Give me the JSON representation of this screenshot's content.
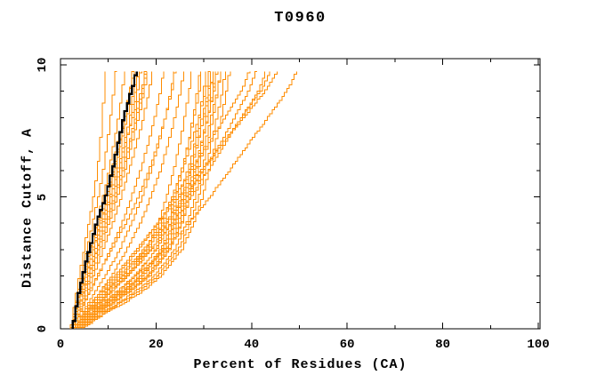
{
  "chart_data": {
    "type": "line",
    "title": "T0960",
    "xlabel": "Percent of Residues (CA)",
    "ylabel": "Distance Cutoff, A",
    "xlim": [
      0,
      100.4
    ],
    "ylim": [
      0,
      10.24
    ],
    "x_ticks_major": [
      0,
      20,
      40,
      60,
      80,
      100
    ],
    "x_ticks_minor": [
      10,
      30,
      50,
      70,
      90
    ],
    "y_ticks_major": [
      0,
      5,
      10
    ],
    "y_ticks_minor": [
      1,
      2,
      3,
      4,
      6,
      7,
      8,
      9
    ],
    "grid": false,
    "legend": "none",
    "frame": "box-with-inward-ticks",
    "line_color": "#ff8c00",
    "highlight_color": "#000000",
    "frame_color": "#000000",
    "text_color": "#000000",
    "cutoffs": [
      0,
      0.5,
      1,
      1.5,
      2,
      3,
      4,
      5,
      6,
      7,
      8,
      9,
      9.75
    ],
    "highlighted_model": [
      2.6,
      3.0,
      3.5,
      4.1,
      4.7,
      6.1,
      7.6,
      9.5,
      10.9,
      12.1,
      13.3,
      14.9,
      16.0
    ],
    "models": [
      [
        2.2,
        2.6,
        3.0,
        3.5,
        4.0,
        5.0,
        6.0,
        7.0,
        7.8,
        8.4,
        8.8,
        9.2,
        9.5
      ],
      [
        2.4,
        2.8,
        3.3,
        3.9,
        4.5,
        5.6,
        6.8,
        8.0,
        9.0,
        9.8,
        10.5,
        11.2,
        11.6
      ],
      [
        2.6,
        3.1,
        3.6,
        4.3,
        5.0,
        6.3,
        7.7,
        9.0,
        10.2,
        11.2,
        12.2,
        13.0,
        13.4
      ],
      [
        2.8,
        3.3,
        3.9,
        4.7,
        5.5,
        7.0,
        8.5,
        10.0,
        11.3,
        12.5,
        13.6,
        14.6,
        15.0
      ],
      [
        3.0,
        3.6,
        4.3,
        5.2,
        6.0,
        7.7,
        9.3,
        11.0,
        12.5,
        13.8,
        15.0,
        16.2,
        16.8
      ],
      [
        2.5,
        3.0,
        3.6,
        4.4,
        5.2,
        6.8,
        8.4,
        10.0,
        11.5,
        12.8,
        14.0,
        15.5,
        16.2
      ],
      [
        3.2,
        3.9,
        4.6,
        5.6,
        6.6,
        8.4,
        10.2,
        12.0,
        13.6,
        15.0,
        16.4,
        17.6,
        18.2
      ],
      [
        2.3,
        2.8,
        3.4,
        4.1,
        4.8,
        6.2,
        7.8,
        9.4,
        10.8,
        12.0,
        13.4,
        14.6,
        15.2
      ],
      [
        2.7,
        3.3,
        4.0,
        4.9,
        5.8,
        7.4,
        9.0,
        10.6,
        12.2,
        13.6,
        15.2,
        17.0,
        17.8
      ],
      [
        3.4,
        4.2,
        5.0,
        6.0,
        7.0,
        9.0,
        11.0,
        12.8,
        14.4,
        16.0,
        17.4,
        18.6,
        19.2
      ],
      [
        2.9,
        3.5,
        4.2,
        5.1,
        6.0,
        7.8,
        9.6,
        11.4,
        13.0,
        14.4,
        15.8,
        17.2,
        17.9
      ],
      [
        2.4,
        2.9,
        3.5,
        4.3,
        5.1,
        6.6,
        8.2,
        9.8,
        11.2,
        12.4,
        13.6,
        14.8,
        15.4
      ],
      [
        3.1,
        3.8,
        4.5,
        5.4,
        6.3,
        8.0,
        9.8,
        11.6,
        13.2,
        14.6,
        16.0,
        17.4,
        18.0
      ],
      [
        2.6,
        3.2,
        3.8,
        4.6,
        5.4,
        7.0,
        8.8,
        10.4,
        12.0,
        13.4,
        14.6,
        15.8,
        16.4
      ],
      [
        3.0,
        4.0,
        5.2,
        6.6,
        8.0,
        10.5,
        13.0,
        15.0,
        16.8,
        18.4,
        19.8,
        21.0,
        21.6
      ],
      [
        3.3,
        4.5,
        6.0,
        7.8,
        9.5,
        12.5,
        15.0,
        17.2,
        19.0,
        20.6,
        22.0,
        23.2,
        23.8
      ],
      [
        3.6,
        5.0,
        6.8,
        8.8,
        10.8,
        14.0,
        16.8,
        19.0,
        21.0,
        22.6,
        24.0,
        25.2,
        25.8
      ],
      [
        2.8,
        3.8,
        5.0,
        6.4,
        7.8,
        10.8,
        13.8,
        16.4,
        18.6,
        20.4,
        22.0,
        23.4,
        24.0
      ],
      [
        3.2,
        5.5,
        8.5,
        11.5,
        14.0,
        18.0,
        20.5,
        22.3,
        23.8,
        25.0,
        26.0,
        27.0,
        27.5
      ],
      [
        3.5,
        6.0,
        9.5,
        13.0,
        16.0,
        20.0,
        22.5,
        24.2,
        25.6,
        26.8,
        27.8,
        28.7,
        29.2
      ],
      [
        3.8,
        6.8,
        10.5,
        14.5,
        17.5,
        21.5,
        24.0,
        25.7,
        27.0,
        28.1,
        29.1,
        30.0,
        30.5
      ],
      [
        3.0,
        5.0,
        8.0,
        11.0,
        13.8,
        18.5,
        21.5,
        23.7,
        25.4,
        26.8,
        28.0,
        29.1,
        29.6
      ],
      [
        4.0,
        7.5,
        11.5,
        15.5,
        18.8,
        23.0,
        25.5,
        27.2,
        28.5,
        29.6,
        30.6,
        31.5,
        32.0
      ],
      [
        3.4,
        6.2,
        9.8,
        13.6,
        16.8,
        21.0,
        23.8,
        25.8,
        27.4,
        28.8,
        30.0,
        31.1,
        31.6
      ],
      [
        3.7,
        7.0,
        11.0,
        15.0,
        18.2,
        22.4,
        25.0,
        26.9,
        28.4,
        29.7,
        30.9,
        32.0,
        32.5
      ],
      [
        3.1,
        5.2,
        8.2,
        11.4,
        14.4,
        19.2,
        22.4,
        24.8,
        26.7,
        28.3,
        29.7,
        31.0,
        31.6
      ],
      [
        4.2,
        8.0,
        12.5,
        16.5,
        19.8,
        24.0,
        26.5,
        28.3,
        29.7,
        30.9,
        32.0,
        33.0,
        33.5
      ],
      [
        3.6,
        6.5,
        10.2,
        14.2,
        17.4,
        21.8,
        24.6,
        26.6,
        28.2,
        29.6,
        30.9,
        32.1,
        32.7
      ],
      [
        3.3,
        5.8,
        9.0,
        12.6,
        15.6,
        20.2,
        23.2,
        25.4,
        27.2,
        28.7,
        30.1,
        31.4,
        32.0
      ],
      [
        4.5,
        8.5,
        13.0,
        17.2,
        20.5,
        24.8,
        27.2,
        29.0,
        30.4,
        31.6,
        32.8,
        33.9,
        34.5
      ],
      [
        3.9,
        7.2,
        11.2,
        15.2,
        18.5,
        22.8,
        25.4,
        27.3,
        28.9,
        30.3,
        31.6,
        32.9,
        33.5
      ],
      [
        3.5,
        6.4,
        10.0,
        13.9,
        17.0,
        21.3,
        24.2,
        26.3,
        28.0,
        29.5,
        30.9,
        32.2,
        32.8
      ],
      [
        4.8,
        9.0,
        13.8,
        18.0,
        21.2,
        25.5,
        28.0,
        29.8,
        31.2,
        32.5,
        33.7,
        34.8,
        35.4
      ],
      [
        3.0,
        4.8,
        7.5,
        10.5,
        13.2,
        17.8,
        21.0,
        23.5,
        25.6,
        27.4,
        29.0,
        30.5,
        31.2
      ],
      [
        3.4,
        5.0,
        7.0,
        9.5,
        12.0,
        16.5,
        20.5,
        24.0,
        27.5,
        31.0,
        34.5,
        38.0,
        39.5
      ],
      [
        3.8,
        5.5,
        8.0,
        11.0,
        14.0,
        19.0,
        23.5,
        27.5,
        31.0,
        34.5,
        38.0,
        41.5,
        43.0
      ],
      [
        3.2,
        4.5,
        6.5,
        9.0,
        11.5,
        16.0,
        20.5,
        25.0,
        29.5,
        34.0,
        38.5,
        43.0,
        45.5
      ],
      [
        4.0,
        6.0,
        9.0,
        12.5,
        16.0,
        22.0,
        27.0,
        31.5,
        35.5,
        39.5,
        43.5,
        47.5,
        49.5
      ],
      [
        3.6,
        5.2,
        7.5,
        10.2,
        13.0,
        18.0,
        22.5,
        26.5,
        30.0,
        33.5,
        36.5,
        39.5,
        41.0
      ],
      [
        3.3,
        4.8,
        7.0,
        9.8,
        12.5,
        17.5,
        22.0,
        26.0,
        30.0,
        34.0,
        38.0,
        42.0,
        44.0
      ]
    ]
  }
}
